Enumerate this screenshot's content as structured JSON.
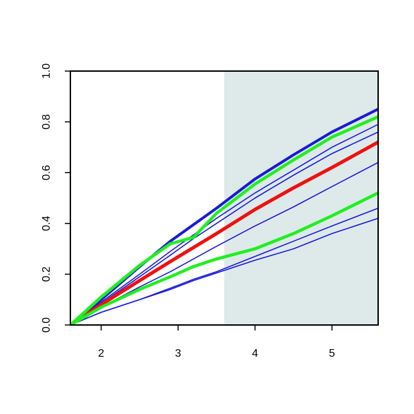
{
  "chart_data": {
    "type": "line",
    "x": [
      1.6,
      2,
      2.5,
      2.9,
      3.2,
      3.5,
      4,
      4.5,
      5,
      5.6
    ],
    "xlim": [
      1.6,
      5.6
    ],
    "ylim": [
      0,
      1
    ],
    "xticks": [
      2,
      3,
      4,
      5
    ],
    "yticks": [
      {
        "value": 0,
        "label": "0.0"
      },
      0.2,
      0.4,
      0.6,
      0.8,
      {
        "value": 1,
        "label": "1.0"
      }
    ],
    "shade": {
      "xlim": [
        3.6,
        5.6
      ],
      "color": "#deeaea"
    },
    "series": [
      {
        "color": "#1a1ad6",
        "width": 1.6,
        "values": [
          0,
          0.05,
          0.1,
          0.14,
          0.175,
          0.205,
          0.255,
          0.3,
          0.36,
          0.42
        ]
      },
      {
        "color": "#1a1ad6",
        "width": 1.6,
        "values": [
          0,
          0.05,
          0.1,
          0.145,
          0.18,
          0.21,
          0.27,
          0.33,
          0.39,
          0.46
        ]
      },
      {
        "color": "#1a1ad6",
        "width": 1.6,
        "values": [
          0,
          0.07,
          0.15,
          0.21,
          0.26,
          0.31,
          0.39,
          0.465,
          0.545,
          0.64
        ]
      },
      {
        "color": "#1a1ad6",
        "width": 1.6,
        "values": [
          0,
          0.085,
          0.19,
          0.275,
          0.34,
          0.4,
          0.5,
          0.59,
          0.675,
          0.76
        ]
      },
      {
        "color": "#1a1ad6",
        "width": 1.6,
        "values": [
          0,
          0.09,
          0.2,
          0.29,
          0.355,
          0.42,
          0.52,
          0.61,
          0.7,
          0.79
        ]
      },
      {
        "color": "#1a1ad6",
        "width": 4,
        "values": [
          0,
          0.1,
          0.23,
          0.33,
          0.395,
          0.46,
          0.575,
          0.67,
          0.76,
          0.85
        ]
      },
      {
        "color": "#ee1111",
        "width": 5,
        "values": [
          0,
          0.08,
          0.175,
          0.25,
          0.305,
          0.36,
          0.455,
          0.54,
          0.62,
          0.72
        ]
      },
      {
        "color": "#22ee22",
        "width": 4.5,
        "values": [
          0,
          0.07,
          0.14,
          0.19,
          0.23,
          0.26,
          0.3,
          0.36,
          0.43,
          0.52
        ]
      },
      {
        "color": "#22ee22",
        "width": 4.5,
        "values": [
          0,
          0.11,
          0.235,
          0.32,
          0.345,
          0.44,
          0.555,
          0.65,
          0.74,
          0.82
        ]
      }
    ]
  }
}
